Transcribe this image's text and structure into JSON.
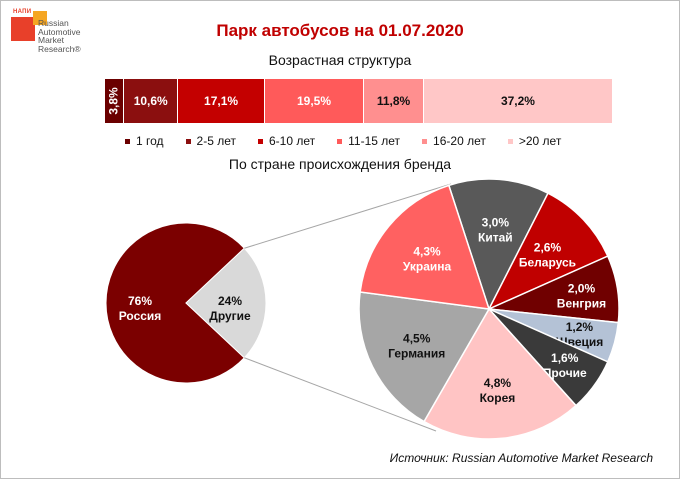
{
  "logo": {
    "top_text": "НАПИ",
    "lines": [
      "Russian",
      "Automotive",
      "Market",
      "Research®"
    ]
  },
  "title": "Парк автобусов на 01.07.2020",
  "subtitle_age": "Возрастная структура",
  "subtitle_brand": "По стране происхождения бренда",
  "source": "Источник: Russian Automotive Market Research",
  "chart_data": [
    {
      "type": "bar",
      "stacked": true,
      "title": "Возрастная структура",
      "categories": [
        "1 год",
        "2-5 лет",
        "6-10 лет",
        "11-15 лет",
        "16-20 лет",
        ">20 лет"
      ],
      "values": [
        3.8,
        10.6,
        17.1,
        19.5,
        11.8,
        37.2
      ],
      "labels": [
        "3,8%",
        "10,6%",
        "17,1%",
        "19,5%",
        "11,8%",
        "37,2%"
      ],
      "colors": [
        "#6b0000",
        "#8b0f0f",
        "#c40000",
        "#ff5a5a",
        "#ff8f8f",
        "#ffc7c7"
      ],
      "label_colors": [
        "#ffffff",
        "#ffffff",
        "#ffffff",
        "#ffffff",
        "#111111",
        "#111111"
      ],
      "legend_position": "bottom"
    },
    {
      "type": "pie",
      "title": "По стране происхождения бренда",
      "slices": [
        {
          "name": "Россия",
          "value": 76,
          "label": "76%",
          "color": "#7b0000",
          "label_color": "#ffffff"
        },
        {
          "name": "Другие",
          "value": 24,
          "label": "24%",
          "color": "#d9d9d9",
          "label_color": "#111111"
        }
      ]
    },
    {
      "type": "pie",
      "title": "Другие",
      "slices": [
        {
          "name": "Китай",
          "value": 3.0,
          "label": "3,0%",
          "color": "#595959",
          "label_color": "#ffffff"
        },
        {
          "name": "Беларусь",
          "value": 2.6,
          "label": "2,6%",
          "color": "#c00000",
          "label_color": "#ffffff"
        },
        {
          "name": "Венгрия",
          "value": 2.0,
          "label": "2,0%",
          "color": "#700000",
          "label_color": "#ffffff"
        },
        {
          "name": "Швеция",
          "value": 1.2,
          "label": "1,2%",
          "color": "#b4c2d6",
          "label_color": "#111111"
        },
        {
          "name": "Прочие",
          "value": 1.6,
          "label": "1,6%",
          "color": "#3a3a3a",
          "label_color": "#ffffff"
        },
        {
          "name": "Корея",
          "value": 4.8,
          "label": "4,8%",
          "color": "#ffc4c4",
          "label_color": "#111111"
        },
        {
          "name": "Германия",
          "value": 4.5,
          "label": "4,5%",
          "color": "#a6a6a6",
          "label_color": "#111111"
        },
        {
          "name": "Украина",
          "value": 4.3,
          "label": "4,3%",
          "color": "#ff6161",
          "label_color": "#ffffff"
        }
      ]
    }
  ]
}
